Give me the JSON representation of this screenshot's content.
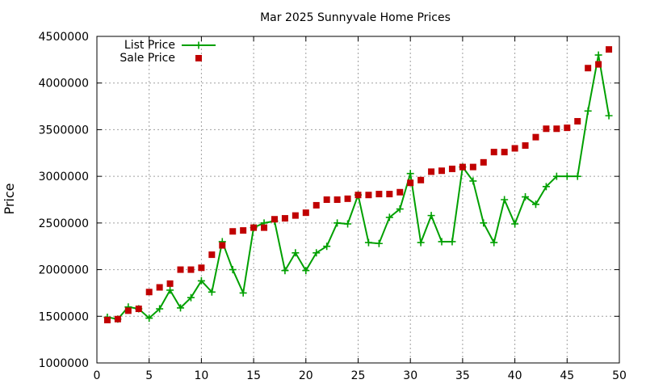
{
  "chart_data": {
    "type": "line",
    "title": "Mar 2025 Sunnyvale Home Prices",
    "xlabel": "",
    "ylabel": "Price",
    "xlim": [
      0,
      50
    ],
    "ylim": [
      1000000,
      4500000
    ],
    "x_ticks": [
      "0",
      "5",
      "10",
      "15",
      "20",
      "25",
      "30",
      "35",
      "40",
      "45",
      "50"
    ],
    "y_ticks": [
      "1000000",
      "1500000",
      "2000000",
      "2500000",
      "3000000",
      "3500000",
      "4000000",
      "4500000"
    ],
    "grid": true,
    "legend_position": "top-left",
    "series": [
      {
        "name": "List Price",
        "style": "line-with-plus",
        "color": "#00a000",
        "x": [
          1,
          2,
          3,
          4,
          5,
          6,
          7,
          8,
          9,
          10,
          11,
          12,
          13,
          14,
          15,
          16,
          17,
          18,
          19,
          20,
          21,
          22,
          23,
          24,
          25,
          26,
          27,
          28,
          29,
          30,
          31,
          32,
          33,
          34,
          35,
          36,
          37,
          38,
          39,
          40,
          41,
          42,
          43,
          44,
          45,
          46,
          47,
          48,
          49
        ],
        "values": [
          1490000,
          1470000,
          1600000,
          1580000,
          1480000,
          1580000,
          1780000,
          1590000,
          1700000,
          1880000,
          1760000,
          2300000,
          2000000,
          1750000,
          2450000,
          2500000,
          2520000,
          1990000,
          2180000,
          1990000,
          2180000,
          2250000,
          2500000,
          2490000,
          2800000,
          2290000,
          2280000,
          2560000,
          2650000,
          3030000,
          2290000,
          2580000,
          2300000,
          2300000,
          3100000,
          2950000,
          2500000,
          2290000,
          2750000,
          2490000,
          2780000,
          2700000,
          2890000,
          3000000,
          3000000,
          3000000,
          3700000,
          4300000,
          3650000
        ]
      },
      {
        "name": "Sale Price",
        "style": "square-markers",
        "color": "#c00000",
        "x": [
          1,
          2,
          3,
          4,
          5,
          6,
          7,
          8,
          9,
          10,
          11,
          12,
          13,
          14,
          15,
          16,
          17,
          18,
          19,
          20,
          21,
          22,
          23,
          24,
          25,
          26,
          27,
          28,
          29,
          30,
          31,
          32,
          33,
          34,
          35,
          36,
          37,
          38,
          39,
          40,
          41,
          42,
          43,
          44,
          45,
          46,
          47,
          48,
          49
        ],
        "values": [
          1460000,
          1470000,
          1560000,
          1580000,
          1760000,
          1810000,
          1850000,
          2000000,
          2000000,
          2020000,
          2160000,
          2260000,
          2410000,
          2420000,
          2450000,
          2450000,
          2540000,
          2550000,
          2580000,
          2610000,
          2690000,
          2750000,
          2750000,
          2760000,
          2800000,
          2800000,
          2810000,
          2810000,
          2830000,
          2930000,
          2960000,
          3050000,
          3060000,
          3080000,
          3100000,
          3100000,
          3150000,
          3260000,
          3260000,
          3300000,
          3330000,
          3420000,
          3510000,
          3510000,
          3520000,
          3590000,
          4160000,
          4200000,
          4360000
        ]
      }
    ]
  }
}
